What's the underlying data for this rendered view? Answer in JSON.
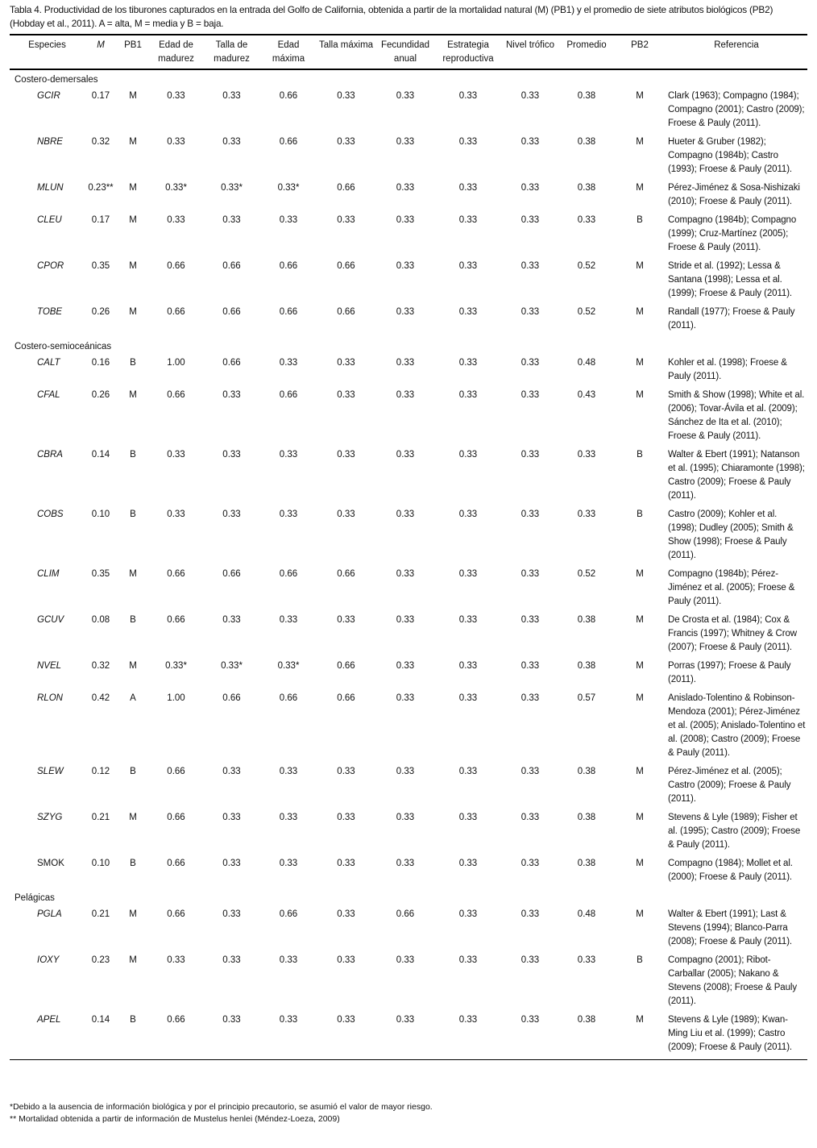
{
  "caption": "Tabla 4. Productividad de los tiburones capturados en la entrada del Golfo de California, obtenida a partir de la mortalidad natural (M) (PB1) y el promedio de siete atributos biológicos (PB2) (Hobday et al., 2011). A = alta, M = media y B = baja.",
  "headers": [
    "Especies",
    "M",
    "PB1",
    "Edad de madurez",
    "Talla de madurez",
    "Edad máxima",
    "Talla máxima",
    "Fecundidad anual",
    "Estrategia reproductiva",
    "Nivel trófico",
    "Promedio",
    "PB2",
    "Referencia"
  ],
  "groups": [
    {
      "name": "Costero-demersales",
      "rows": [
        [
          "GCIR",
          "0.17",
          "M",
          "0.33",
          "0.33",
          "0.66",
          "0.33",
          "0.33",
          "0.33",
          "0.33",
          "0.38",
          "M",
          "Clark (1963); Compagno (1984); Compagno (2001); Castro (2009); Froese & Pauly (2011)."
        ],
        [
          "NBRE",
          "0.32",
          "M",
          "0.33",
          "0.33",
          "0.66",
          "0.33",
          "0.33",
          "0.33",
          "0.33",
          "0.38",
          "M",
          "Hueter & Gruber (1982); Compagno (1984b); Castro (1993); Froese & Pauly (2011)."
        ],
        [
          "MLUN",
          "0.23**",
          "M",
          "0.33*",
          "0.33*",
          "0.33*",
          "0.66",
          "0.33",
          "0.33",
          "0.33",
          "0.38",
          "M",
          "Pérez-Jiménez & Sosa-Nishizaki (2010); Froese & Pauly (2011)."
        ],
        [
          "CLEU",
          "0.17",
          "M",
          "0.33",
          "0.33",
          "0.33",
          "0.33",
          "0.33",
          "0.33",
          "0.33",
          "0.33",
          "B",
          "Compagno (1984b); Compagno (1999); Cruz-Martínez (2005); Froese & Pauly (2011)."
        ],
        [
          "CPOR",
          "0.35",
          "M",
          "0.66",
          "0.66",
          "0.66",
          "0.66",
          "0.33",
          "0.33",
          "0.33",
          "0.52",
          "M",
          "Stride et al. (1992); Lessa & Santana (1998); Lessa et al. (1999); Froese & Pauly (2011)."
        ],
        [
          "TOBE",
          "0.26",
          "M",
          "0.66",
          "0.66",
          "0.66",
          "0.66",
          "0.33",
          "0.33",
          "0.33",
          "0.52",
          "M",
          "Randall (1977); Froese & Pauly (2011)."
        ]
      ]
    },
    {
      "name": "Costero-semioceánicas",
      "rows": [
        [
          "CALT",
          "0.16",
          "B",
          "1.00",
          "0.66",
          "0.33",
          "0.33",
          "0.33",
          "0.33",
          "0.33",
          "0.48",
          "M",
          "Kohler et al. (1998); Froese & Pauly (2011)."
        ],
        [
          "CFAL",
          "0.26",
          "M",
          "0.66",
          "0.33",
          "0.66",
          "0.33",
          "0.33",
          "0.33",
          "0.33",
          "0.43",
          "M",
          "Smith & Show (1998); White et al. (2006); Tovar-Ávila et al. (2009); Sánchez de Ita et al. (2010); Froese & Pauly (2011)."
        ],
        [
          "CBRA",
          "0.14",
          "B",
          "0.33",
          "0.33",
          "0.33",
          "0.33",
          "0.33",
          "0.33",
          "0.33",
          "0.33",
          "B",
          "Walter & Ebert (1991); Natanson et al. (1995); Chiaramonte (1998); Castro (2009); Froese & Pauly (2011)."
        ],
        [
          "COBS",
          "0.10",
          "B",
          "0.33",
          "0.33",
          "0.33",
          "0.33",
          "0.33",
          "0.33",
          "0.33",
          "0.33",
          "B",
          "Castro (2009); Kohler et al. (1998); Dudley (2005); Smith & Show (1998); Froese & Pauly (2011)."
        ],
        [
          "CLIM",
          "0.35",
          "M",
          "0.66",
          "0.66",
          "0.66",
          "0.66",
          "0.33",
          "0.33",
          "0.33",
          "0.52",
          "M",
          "Compagno (1984b); Pérez-Jiménez et al. (2005); Froese & Pauly (2011)."
        ],
        [
          "GCUV",
          "0.08",
          "B",
          "0.66",
          "0.33",
          "0.33",
          "0.33",
          "0.33",
          "0.33",
          "0.33",
          "0.38",
          "M",
          "De Crosta et al. (1984); Cox & Francis (1997); Whitney & Crow (2007); Froese & Pauly (2011)."
        ],
        [
          "NVEL",
          "0.32",
          "M",
          "0.33*",
          "0.33*",
          "0.33*",
          "0.66",
          "0.33",
          "0.33",
          "0.33",
          "0.38",
          "M",
          "Porras (1997); Froese & Pauly (2011)."
        ],
        [
          "RLON",
          "0.42",
          "A",
          "1.00",
          "0.66",
          "0.66",
          "0.66",
          "0.33",
          "0.33",
          "0.33",
          "0.57",
          "M",
          "Anislado-Tolentino & Robinson-Mendoza (2001); Pérez-Jiménez et al. (2005); Anislado-Tolentino et al. (2008); Castro (2009); Froese & Pauly (2011)."
        ],
        [
          "SLEW",
          "0.12",
          "B",
          "0.66",
          "0.33",
          "0.33",
          "0.33",
          "0.33",
          "0.33",
          "0.33",
          "0.38",
          "M",
          "Pérez-Jiménez et al. (2005); Castro (2009); Froese & Pauly (2011)."
        ],
        [
          "SZYG",
          "0.21",
          "M",
          "0.66",
          "0.33",
          "0.33",
          "0.33",
          "0.33",
          "0.33",
          "0.33",
          "0.38",
          "M",
          "Stevens & Lyle (1989); Fisher et al. (1995); Castro (2009); Froese & Pauly (2011)."
        ],
        [
          "SMOK",
          "0.10",
          "B",
          "0.66",
          "0.33",
          "0.33",
          "0.33",
          "0.33",
          "0.33",
          "0.33",
          "0.38",
          "M",
          "Compagno (1984); Mollet et al. (2000); Froese & Pauly (2011)."
        ]
      ]
    },
    {
      "name": "Pelágicas",
      "rows": [
        [
          "PGLA",
          "0.21",
          "M",
          "0.66",
          "0.33",
          "0.66",
          "0.33",
          "0.66",
          "0.33",
          "0.33",
          "0.48",
          "M",
          "Walter & Ebert (1991); Last & Stevens (1994); Blanco-Parra (2008); Froese & Pauly (2011)."
        ],
        [
          "IOXY",
          "0.23",
          "M",
          "0.33",
          "0.33",
          "0.33",
          "0.33",
          "0.33",
          "0.33",
          "0.33",
          "0.33",
          "B",
          "Compagno (2001); Ribot-Carballar (2005); Nakano & Stevens (2008); Froese & Pauly (2011)."
        ],
        [
          "APEL",
          "0.14",
          "B",
          "0.66",
          "0.33",
          "0.33",
          "0.33",
          "0.33",
          "0.33",
          "0.33",
          "0.38",
          "M",
          "Stevens & Lyle (1989); Kwan-Ming Liu et al. (1999); Castro (2009); Froese & Pauly (2011)."
        ]
      ]
    }
  ],
  "footnotes": [
    "*Debido a la ausencia de información biológica y por el principio precautorio, se asumió el valor de mayor riesgo.",
    "** Mortalidad obtenida a partir de información de Mustelus henlei (Méndez-Loeza, 2009)"
  ]
}
